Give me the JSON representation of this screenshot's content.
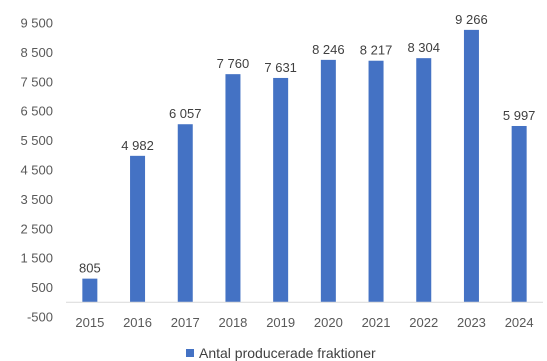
{
  "chart_data": {
    "type": "bar",
    "categories": [
      "2015",
      "2016",
      "2017",
      "2018",
      "2019",
      "2020",
      "2021",
      "2022",
      "2023",
      "2024"
    ],
    "series": [
      {
        "name": "Antal producerade fraktioner",
        "values": [
          805,
          4982,
          6057,
          7760,
          7631,
          8246,
          8217,
          8304,
          9266,
          5997
        ],
        "color": "#4472C4"
      }
    ],
    "data_labels": [
      "805",
      "4 982",
      "6 057",
      "7 760",
      "7 631",
      "8 246",
      "8 217",
      "8 304",
      "9 266",
      "5 997"
    ],
    "y_ticks": [
      -500,
      500,
      1500,
      2500,
      3500,
      4500,
      5500,
      6500,
      7500,
      8500,
      9500
    ],
    "y_tick_labels": [
      "-500",
      "500",
      "1 500",
      "2 500",
      "3 500",
      "4 500",
      "5 500",
      "6 500",
      "7 500",
      "8 500",
      "9 500"
    ],
    "ylim": [
      -500,
      9500
    ],
    "title": "",
    "xlabel": "",
    "ylabel": "",
    "grid": false,
    "legend_position": "bottom"
  }
}
